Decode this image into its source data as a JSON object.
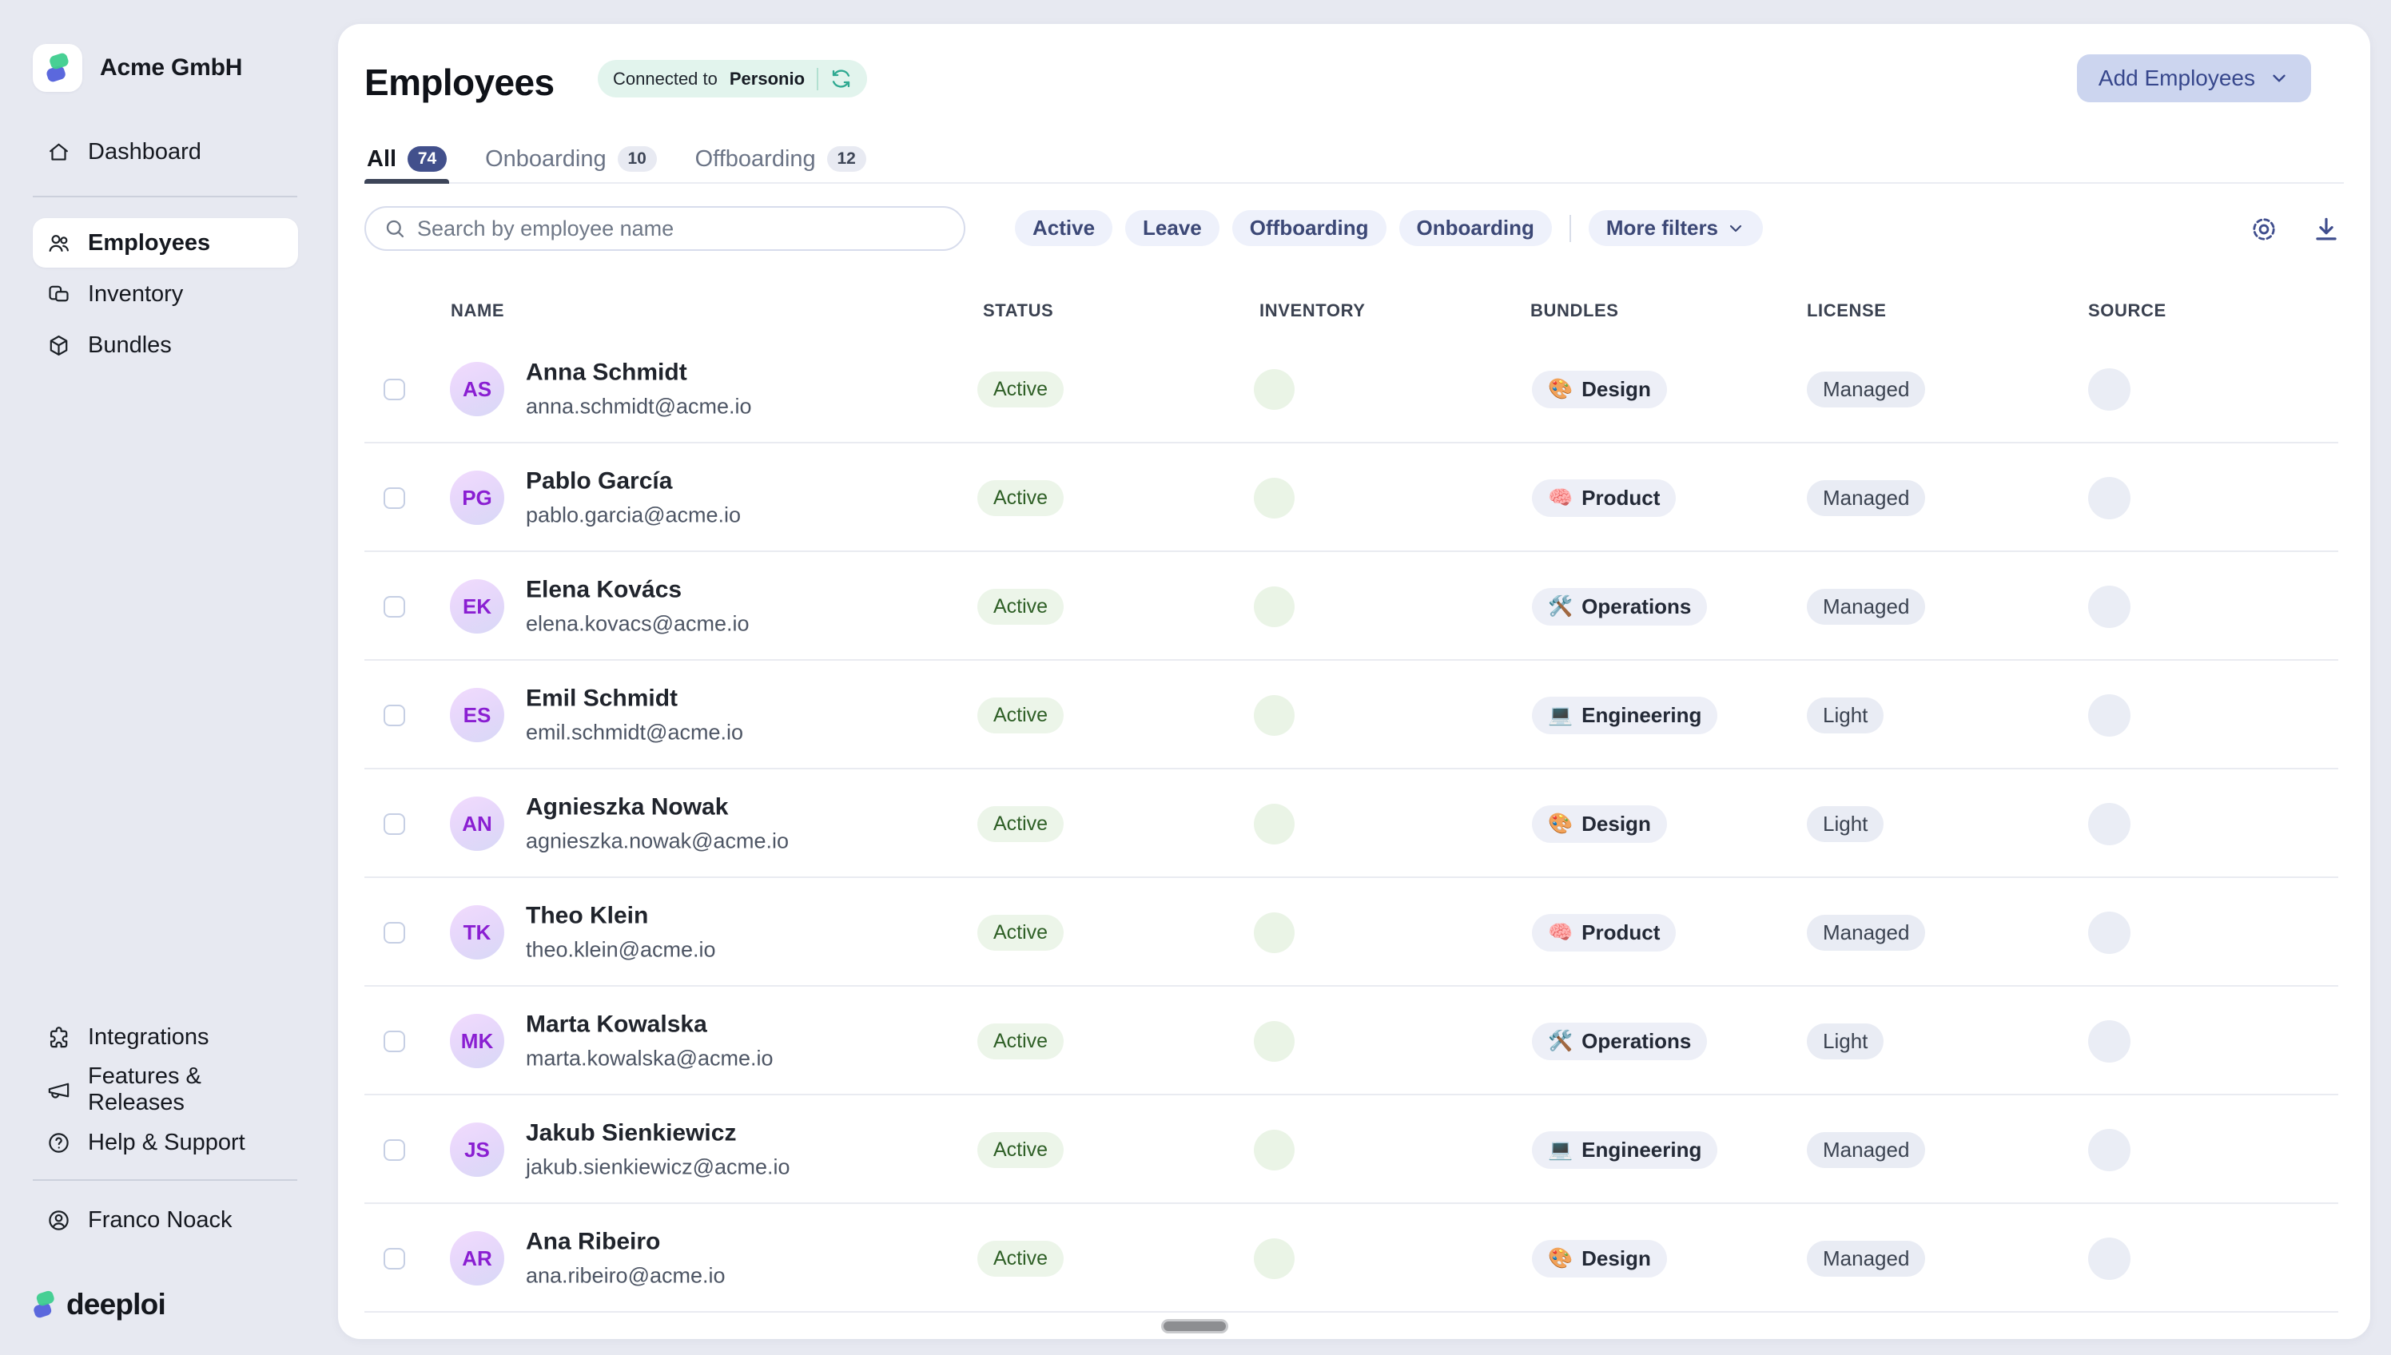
{
  "sidebar": {
    "company_name": "Acme GmbH",
    "nav_top": [
      {
        "label": "Dashboard",
        "icon": "home"
      }
    ],
    "nav_main": [
      {
        "label": "Employees",
        "icon": "users",
        "active": true
      },
      {
        "label": "Inventory",
        "icon": "devices"
      },
      {
        "label": "Bundles",
        "icon": "package"
      }
    ],
    "nav_bottom": [
      {
        "label": "Integrations",
        "icon": "puzzle"
      },
      {
        "label": "Features & Releases",
        "icon": "megaphone"
      },
      {
        "label": "Help & Support",
        "icon": "help"
      }
    ],
    "user_name": "Franco Noack",
    "brand_name": "deeploi"
  },
  "header": {
    "title": "Employees",
    "connection": {
      "prefix": "Connected to",
      "app": "Personio",
      "icon": "refresh-icon"
    },
    "add_button_label": "Add Employees"
  },
  "tabs": [
    {
      "label": "All",
      "count": "74",
      "active": true
    },
    {
      "label": "Onboarding",
      "count": "10"
    },
    {
      "label": "Offboarding",
      "count": "12"
    }
  ],
  "toolbar": {
    "search_placeholder": "Search by employee name",
    "filter_chips": [
      "Active",
      "Leave",
      "Offboarding",
      "Onboarding"
    ],
    "more_filters_label": "More filters",
    "action_icons": [
      "gear-icon",
      "download-icon"
    ]
  },
  "table": {
    "columns": [
      "NAME",
      "STATUS",
      "INVENTORY",
      "BUNDLES",
      "LICENSE",
      "SOURCE"
    ],
    "rows": [
      {
        "initials": "AS",
        "name": "Anna Schmidt",
        "email": "anna.schmidt@acme.io",
        "status": "Active",
        "bundle": "Design",
        "bundle_icon": "🎨",
        "license": "Managed"
      },
      {
        "initials": "PG",
        "name": "Pablo García",
        "email": "pablo.garcia@acme.io",
        "status": "Active",
        "bundle": "Product",
        "bundle_icon": "🧠",
        "license": "Managed"
      },
      {
        "initials": "EK",
        "name": "Elena Kovács",
        "email": "elena.kovacs@acme.io",
        "status": "Active",
        "bundle": "Operations",
        "bundle_icon": "🛠️",
        "license": "Managed"
      },
      {
        "initials": "ES",
        "name": "Emil Schmidt",
        "email": "emil.schmidt@acme.io",
        "status": "Active",
        "bundle": "Engineering",
        "bundle_icon": "💻",
        "license": "Light"
      },
      {
        "initials": "AN",
        "name": "Agnieszka Nowak",
        "email": "agnieszka.nowak@acme.io",
        "status": "Active",
        "bundle": "Design",
        "bundle_icon": "🎨",
        "license": "Light"
      },
      {
        "initials": "TK",
        "name": "Theo Klein",
        "email": "theo.klein@acme.io",
        "status": "Active",
        "bundle": "Product",
        "bundle_icon": "🧠",
        "license": "Managed"
      },
      {
        "initials": "MK",
        "name": "Marta Kowalska",
        "email": "marta.kowalska@acme.io",
        "status": "Active",
        "bundle": "Operations",
        "bundle_icon": "🛠️",
        "license": "Light"
      },
      {
        "initials": "JS",
        "name": "Jakub Sienkiewicz",
        "email": "jakub.sienkiewicz@acme.io",
        "status": "Active",
        "bundle": "Engineering",
        "bundle_icon": "💻",
        "license": "Managed"
      },
      {
        "initials": "AR",
        "name": "Ana Ribeiro",
        "email": "ana.ribeiro@acme.io",
        "status": "Active",
        "bundle": "Design",
        "bundle_icon": "🎨",
        "license": "Managed"
      }
    ]
  },
  "colors": {
    "accent_indigo": "#3f4d8d",
    "tab_badge_active": "#42508c",
    "status_green_text": "#2e5f26",
    "status_green_bg": "#ecf5e9",
    "connected_teal": "#2fa991",
    "connected_bg": "#e2f4ed",
    "brand_green": "#3ecd8e",
    "brand_blue": "#5b68dd",
    "page_bg": "#e7e9f1"
  }
}
